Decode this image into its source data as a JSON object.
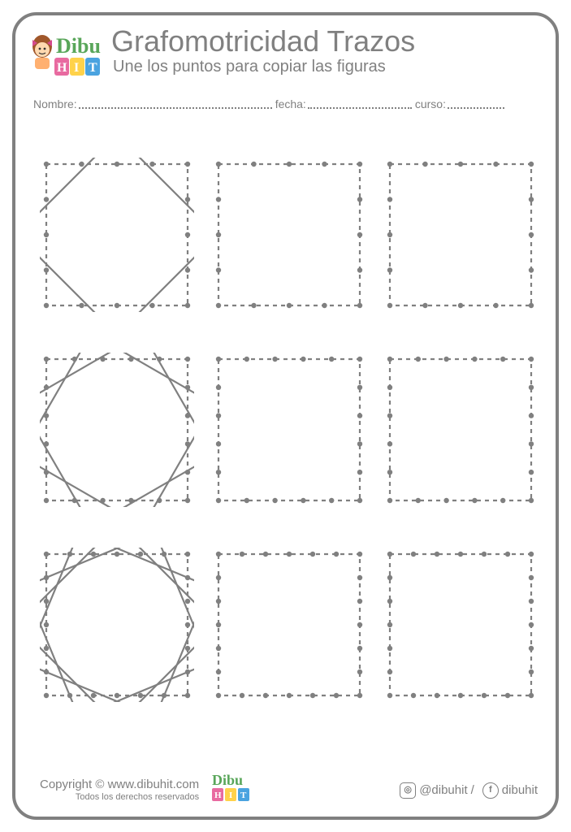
{
  "brand": "DibuHIT",
  "title": "Grafomotricidad Trazos",
  "subtitle": "Une los puntos para copiar las figuras",
  "labels": {
    "name": "Nombre:",
    "date": "fecha:",
    "course": "curso:"
  },
  "footer": {
    "copyright": "Copyright © www.dibuhit.com",
    "rights": "Todos los derechos reservados",
    "handle": "@dibuhit",
    "fb": "dibuhit"
  },
  "style": {
    "stroke": "#808080",
    "fill": "#808080",
    "line_w": 2.2,
    "dash": "5,5",
    "dot_r": 3.2,
    "cell": 190,
    "inset": 8
  },
  "rows": [
    {
      "dots_per_side": 3,
      "rotations": [
        0,
        45
      ]
    },
    {
      "dots_per_side": 4,
      "rotations": [
        0,
        30,
        60
      ]
    },
    {
      "dots_per_side": 5,
      "rotations": [
        0,
        22.5,
        45,
        67.5
      ]
    }
  ],
  "logo": {
    "letters": "HIT",
    "colors": {
      "text": "#59a65a",
      "H": "#e86aa0",
      "I": "#ffd24a",
      "T": "#4aa3e0",
      "skin": "#ffd9b0",
      "hair": "#a0572b",
      "bow": "#d44a8e",
      "shirt": "#ffb070"
    }
  }
}
